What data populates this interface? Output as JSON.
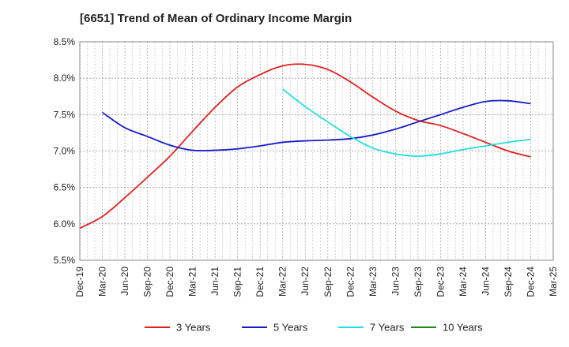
{
  "chart_data": {
    "type": "line",
    "title": "[6651]  Trend of Mean of Ordinary Income Margin",
    "xlabel": "",
    "ylabel": "",
    "x": [
      "Dec-19",
      "Mar-20",
      "Jun-20",
      "Sep-20",
      "Dec-20",
      "Mar-21",
      "Jun-21",
      "Sep-21",
      "Dec-21",
      "Mar-22",
      "Jun-22",
      "Sep-22",
      "Dec-22",
      "Mar-23",
      "Jun-23",
      "Sep-23",
      "Dec-23",
      "Mar-24",
      "Jun-24",
      "Sep-24",
      "Dec-24",
      "Mar-25"
    ],
    "ylim": [
      5.5,
      8.5
    ],
    "y_ticks": [
      5.5,
      6.0,
      6.5,
      7.0,
      7.5,
      8.0,
      8.5
    ],
    "y_tick_labels": [
      "5.5%",
      "6.0%",
      "6.5%",
      "7.0%",
      "7.5%",
      "8.0%",
      "8.5%"
    ],
    "grid": true,
    "legend_position": "bottom",
    "series": [
      {
        "name": "3 Years",
        "color": "#e02020",
        "values": [
          5.94,
          6.1,
          6.36,
          6.64,
          6.93,
          7.27,
          7.6,
          7.88,
          8.05,
          8.17,
          8.19,
          8.12,
          7.95,
          7.74,
          7.55,
          7.42,
          7.35,
          7.24,
          7.12,
          7.0,
          6.92,
          null
        ]
      },
      {
        "name": "5 Years",
        "color": "#1a1acc",
        "values": [
          null,
          7.53,
          7.32,
          7.2,
          7.08,
          7.01,
          7.01,
          7.03,
          7.07,
          7.12,
          7.14,
          7.15,
          7.17,
          7.22,
          7.3,
          7.4,
          7.5,
          7.6,
          7.68,
          7.69,
          7.65,
          null
        ]
      },
      {
        "name": "7 Years",
        "color": "#22e0e0",
        "values": [
          null,
          null,
          null,
          null,
          null,
          null,
          null,
          null,
          null,
          7.85,
          7.61,
          7.4,
          7.2,
          7.04,
          6.96,
          6.93,
          6.96,
          7.02,
          7.07,
          7.12,
          7.16,
          null
        ]
      },
      {
        "name": "10 Years",
        "color": "#1a8a1a",
        "values": [
          null,
          null,
          null,
          null,
          null,
          null,
          null,
          null,
          null,
          null,
          null,
          null,
          null,
          null,
          null,
          null,
          null,
          null,
          null,
          null,
          null,
          null
        ]
      }
    ]
  }
}
